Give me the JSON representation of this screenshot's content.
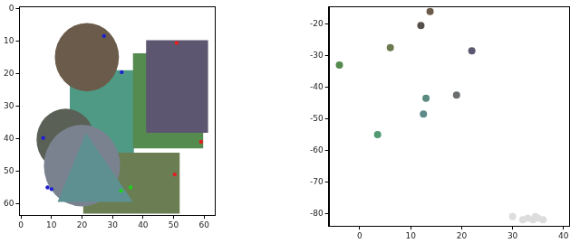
{
  "chart_data": [
    {
      "type": "image",
      "xlim": [
        -0.5,
        63.5
      ],
      "ylim": [
        63.5,
        -0.5
      ],
      "xticks": [
        0,
        10,
        20,
        30,
        40,
        50,
        60
      ],
      "yticks": [
        0,
        10,
        20,
        30,
        40,
        50,
        60
      ],
      "grid": false,
      "shapes": [
        {
          "shape": "rectangle",
          "color": "#4f9a85",
          "x": [
            16,
            37
          ],
          "y": [
            19,
            47
          ]
        },
        {
          "shape": "rectangle",
          "color": "#558b4f",
          "x": [
            36.7,
            59.7
          ],
          "y": [
            13.8,
            43
          ]
        },
        {
          "shape": "rectangle",
          "color": "#5d5670",
          "x": [
            41,
            61.3
          ],
          "y": [
            9.8,
            38.2
          ]
        },
        {
          "shape": "circle",
          "color": "#6b5b4a",
          "center": [
            21.6,
            15
          ],
          "radius": 10.5
        },
        {
          "shape": "rectangle",
          "color": "#6b7d52",
          "x": [
            20.4,
            52
          ],
          "y": [
            44.3,
            63
          ]
        },
        {
          "shape": "circle",
          "color": "#5a6055",
          "center": [
            14.6,
            40.3
          ],
          "radius": 9.5
        },
        {
          "shape": "circle",
          "color": "#7a8290",
          "center": [
            20,
            48.3
          ],
          "radius": 12.5
        },
        {
          "shape": "polygon",
          "color": "#5e9092",
          "x": [
            21.3,
            12,
            36.7
          ],
          "y": [
            38.2,
            59.4,
            59.4
          ]
        }
      ],
      "points": {
        "x": [
          27.2,
          33,
          7.3,
          8.7,
          10,
          51,
          59,
          50.4,
          32.8,
          35.9
        ],
        "y": [
          8.5,
          19.6,
          39.8,
          55,
          55.5,
          10.6,
          41,
          51,
          56,
          55
        ],
        "colors": [
          "#1f1fd0",
          "#1f1fd0",
          "#1f1fd0",
          "#1f1fd0",
          "#1f1fd0",
          "#e01f1f",
          "#e01f1f",
          "#e01f1f",
          "#1fd01f",
          "#1fd01f"
        ]
      }
    },
    {
      "type": "scatter",
      "xlim": [
        -6.1,
        41.1
      ],
      "ylim": [
        -84,
        -14.5
      ],
      "xticks": [
        0,
        10,
        20,
        30,
        40
      ],
      "yticks": [
        -80,
        -70,
        -60,
        -50,
        -40,
        -30,
        -20
      ],
      "grid": false,
      "x": [
        13.8,
        12,
        6,
        22,
        -4,
        13,
        19,
        12.5,
        3.5,
        30,
        32,
        33,
        34,
        34.5,
        35,
        36
      ],
      "values": [
        -16,
        -20.5,
        -27.5,
        -28.5,
        -33,
        -43.5,
        -42.5,
        -48.5,
        -55,
        -81,
        -82,
        -81.5,
        -82,
        -81,
        -81.5,
        -82
      ],
      "colors": [
        "#6b5b4a",
        "#55504c",
        "#6b7a50",
        "#5d5670",
        "#558b4f",
        "#5a8a80",
        "#6a6e70",
        "#5f8a8a",
        "#4f9a70",
        "#dddddd",
        "#dddddd",
        "#dddddd",
        "#dddddd",
        "#dddddd",
        "#dddddd",
        "#dddddd"
      ]
    }
  ]
}
